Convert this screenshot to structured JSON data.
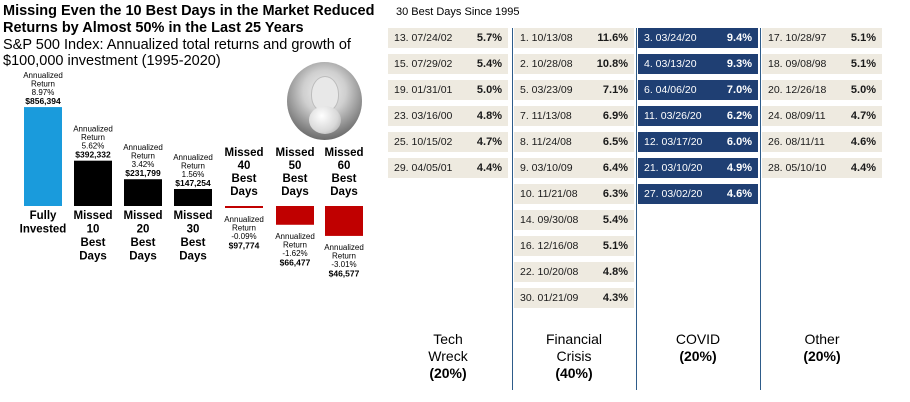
{
  "chart_data": {
    "type": "bar",
    "title": "Missing Even the 10 Best Days in the Market Reduced Returns by Almost 50% in the Last 25 Years",
    "subtitle": "S&P 500 Index: Annualized total returns and growth of $100,000 investment (1995-2020)",
    "bars": [
      {
        "label_lines": [
          "Fully",
          "Invested"
        ],
        "value": 856394,
        "value_label": "$856,394",
        "return_label_lines": [
          "Annualized",
          "Return",
          "8.97%"
        ],
        "color": "#1a9bdc"
      },
      {
        "label_lines": [
          "Missed",
          "10",
          "Best",
          "Days"
        ],
        "value": 392332,
        "value_label": "$392,332",
        "return_label_lines": [
          "Annualized",
          "Return",
          "5.62%"
        ],
        "color": "#000000"
      },
      {
        "label_lines": [
          "Missed",
          "20",
          "Best",
          "Days"
        ],
        "value": 231799,
        "value_label": "$231,799",
        "return_label_lines": [
          "Annualized",
          "Return",
          "3.42%"
        ],
        "color": "#000000"
      },
      {
        "label_lines": [
          "Missed",
          "30",
          "Best",
          "Days"
        ],
        "value": 147254,
        "value_label": "$147,254",
        "return_label_lines": [
          "Annualized",
          "Return",
          "1.56%"
        ],
        "color": "#000000"
      },
      {
        "label_lines": [
          "Missed",
          "40",
          "Best",
          "Days"
        ],
        "value": 97774,
        "value_label": "$97,774",
        "return_label_lines": [
          "Annualized",
          "Return",
          "-0.09%"
        ],
        "color": "#c00000"
      },
      {
        "label_lines": [
          "Missed",
          "50",
          "Best",
          "Days"
        ],
        "value": 66477,
        "value_label": "$66,477",
        "return_label_lines": [
          "Annualized",
          "Return",
          "-1.62%"
        ],
        "color": "#c00000"
      },
      {
        "label_lines": [
          "Missed",
          "60",
          "Best",
          "Days"
        ],
        "value": 46577,
        "value_label": "$46,577",
        "return_label_lines": [
          "Annualized",
          "Return",
          "-3.01%"
        ],
        "color": "#c00000"
      }
    ]
  },
  "grid": {
    "header": "30 Best Days Since 1995",
    "columns": [
      {
        "key": "tech",
        "style": "light",
        "category_line1": "Tech",
        "category_line2": "Wreck",
        "percent": "(20%)",
        "cells": [
          {
            "rank": "13.",
            "date": "07/24/02",
            "ret": "5.7%"
          },
          {
            "rank": "15.",
            "date": "07/29/02",
            "ret": "5.4%"
          },
          {
            "rank": "19.",
            "date": "01/31/01",
            "ret": "5.0%"
          },
          {
            "rank": "23.",
            "date": "03/16/00",
            "ret": "4.8%"
          },
          {
            "rank": "25.",
            "date": "10/15/02",
            "ret": "4.7%"
          },
          {
            "rank": "29.",
            "date": "04/05/01",
            "ret": "4.4%"
          }
        ]
      },
      {
        "key": "fin",
        "style": "light",
        "category_line1": "Financial",
        "category_line2": "Crisis",
        "percent": "(40%)",
        "cells": [
          {
            "rank": "1.",
            "date": "10/13/08",
            "ret": "11.6%"
          },
          {
            "rank": "2.",
            "date": "10/28/08",
            "ret": "10.8%"
          },
          {
            "rank": "5.",
            "date": "03/23/09",
            "ret": "7.1%"
          },
          {
            "rank": "7.",
            "date": "11/13/08",
            "ret": "6.9%"
          },
          {
            "rank": "8.",
            "date": "11/24/08",
            "ret": "6.5%"
          },
          {
            "rank": "9.",
            "date": "03/10/09",
            "ret": "6.4%"
          },
          {
            "rank": "10.",
            "date": "11/21/08",
            "ret": "6.3%"
          },
          {
            "rank": "14.",
            "date": "09/30/08",
            "ret": "5.4%"
          },
          {
            "rank": "16.",
            "date": "12/16/08",
            "ret": "5.1%"
          },
          {
            "rank": "22.",
            "date": "10/20/08",
            "ret": "4.8%"
          },
          {
            "rank": "30.",
            "date": "01/21/09",
            "ret": "4.3%"
          }
        ]
      },
      {
        "key": "covid",
        "style": "dark",
        "category_line1": "COVID",
        "category_line2": "",
        "percent": "(20%)",
        "cells": [
          {
            "rank": "3.",
            "date": "03/24/20",
            "ret": "9.4%"
          },
          {
            "rank": "4.",
            "date": "03/13/20",
            "ret": "9.3%"
          },
          {
            "rank": "6.",
            "date": "04/06/20",
            "ret": "7.0%"
          },
          {
            "rank": "11.",
            "date": "03/26/20",
            "ret": "6.2%"
          },
          {
            "rank": "12.",
            "date": "03/17/20",
            "ret": "6.0%"
          },
          {
            "rank": "21.",
            "date": "03/10/20",
            "ret": "4.9%"
          },
          {
            "rank": "27.",
            "date": "03/02/20",
            "ret": "4.6%"
          }
        ]
      },
      {
        "key": "other",
        "style": "light",
        "category_line1": "Other",
        "category_line2": "",
        "percent": "(20%)",
        "cells": [
          {
            "rank": "17.",
            "date": "10/28/97",
            "ret": "5.1%"
          },
          {
            "rank": "18.",
            "date": "09/08/98",
            "ret": "5.1%"
          },
          {
            "rank": "20.",
            "date": "12/26/18",
            "ret": "5.0%"
          },
          {
            "rank": "24.",
            "date": "08/09/11",
            "ret": "4.7%"
          },
          {
            "rank": "26.",
            "date": "08/11/11",
            "ret": "4.6%"
          },
          {
            "rank": "28.",
            "date": "05/10/10",
            "ret": "4.4%"
          }
        ]
      }
    ]
  }
}
